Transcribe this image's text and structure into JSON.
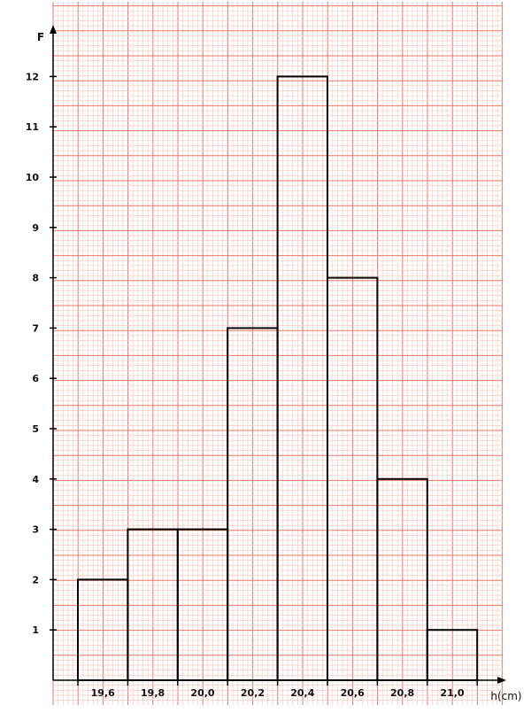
{
  "chart_data": {
    "type": "bar",
    "title": "",
    "xlabel": "h(cm)",
    "ylabel": "F",
    "bins": [
      {
        "from": 19.5,
        "to": 19.7,
        "value": 2
      },
      {
        "from": 19.7,
        "to": 19.9,
        "value": 3
      },
      {
        "from": 19.9,
        "to": 20.1,
        "value": 3
      },
      {
        "from": 20.1,
        "to": 20.3,
        "value": 7
      },
      {
        "from": 20.3,
        "to": 20.5,
        "value": 12
      },
      {
        "from": 20.5,
        "to": 20.7,
        "value": 8
      },
      {
        "from": 20.7,
        "to": 20.9,
        "value": 4
      },
      {
        "from": 20.9,
        "to": 21.1,
        "value": 1
      }
    ],
    "x_ticks": [
      "19,6",
      "19,8",
      "20,0",
      "20,2",
      "20,4",
      "20,6",
      "20,8",
      "21,0"
    ],
    "x_tick_values": [
      19.6,
      19.8,
      20.0,
      20.2,
      20.4,
      20.6,
      20.8,
      21.0
    ],
    "y_ticks": [
      1,
      2,
      3,
      4,
      5,
      6,
      7,
      8,
      9,
      10,
      11,
      12
    ],
    "xlim": [
      19.5,
      21.1
    ],
    "ylim": [
      0,
      12
    ],
    "grid": true,
    "grid_style": "millimeter paper",
    "colors": {
      "grid_major": "#ee7766",
      "grid_minor": "#f8c4bb",
      "bars": "#000000",
      "highlight_tick": "#7a1a3a"
    },
    "highlighted_tick": "21,0"
  }
}
